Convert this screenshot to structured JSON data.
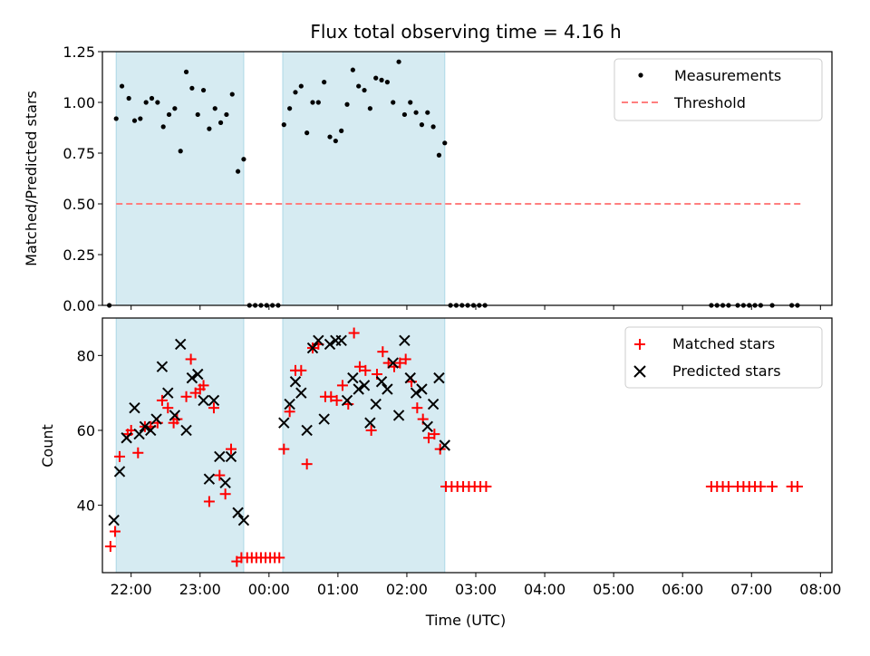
{
  "chart_data": [
    {
      "type": "scatter",
      "title": "Flux total observing time = 4.16 h",
      "xlabel": "",
      "ylabel": "Matched/Predicted stars",
      "xlim": [
        "21:35",
        "08:10"
      ],
      "ylim": [
        0,
        1.25
      ],
      "yticks": [
        0.0,
        0.25,
        0.5,
        0.75,
        1.0,
        1.25
      ],
      "ytick_labels": [
        "0.00",
        "0.25",
        "0.50",
        "0.75",
        "1.00",
        "1.25"
      ],
      "legend_position": "top-right",
      "shaded_intervals": [
        [
          "21:47",
          "23:38"
        ],
        [
          "00:12",
          "02:33"
        ]
      ],
      "shade_color": "#add8e6",
      "series": [
        {
          "name": "Measurements",
          "marker": "dot",
          "color": "#000000",
          "points": [
            [
              "21:41",
              0
            ],
            [
              "21:47",
              0.92
            ],
            [
              "21:52",
              1.08
            ],
            [
              "21:58",
              1.02
            ],
            [
              "22:03",
              0.91
            ],
            [
              "22:08",
              0.92
            ],
            [
              "22:13",
              1.0
            ],
            [
              "22:18",
              1.02
            ],
            [
              "22:23",
              1.0
            ],
            [
              "22:28",
              0.88
            ],
            [
              "22:33",
              0.94
            ],
            [
              "22:38",
              0.97
            ],
            [
              "22:43",
              0.76
            ],
            [
              "22:48",
              1.15
            ],
            [
              "22:53",
              1.07
            ],
            [
              "22:58",
              0.94
            ],
            [
              "23:03",
              1.06
            ],
            [
              "23:08",
              0.87
            ],
            [
              "23:13",
              0.97
            ],
            [
              "23:18",
              0.9
            ],
            [
              "23:23",
              0.94
            ],
            [
              "23:28",
              1.04
            ],
            [
              "23:33",
              0.66
            ],
            [
              "23:38",
              0.72
            ],
            [
              "23:43",
              0
            ],
            [
              "23:48",
              0
            ],
            [
              "23:53",
              0
            ],
            [
              "23:58",
              0
            ],
            [
              "00:03",
              0
            ],
            [
              "00:08",
              0
            ],
            [
              "00:13",
              0.89
            ],
            [
              "00:18",
              0.97
            ],
            [
              "00:23",
              1.05
            ],
            [
              "00:28",
              1.08
            ],
            [
              "00:33",
              0.85
            ],
            [
              "00:38",
              1.0
            ],
            [
              "00:43",
              1.0
            ],
            [
              "00:48",
              1.1
            ],
            [
              "00:53",
              0.83
            ],
            [
              "00:58",
              0.81
            ],
            [
              "01:03",
              0.86
            ],
            [
              "01:08",
              0.99
            ],
            [
              "01:13",
              1.16
            ],
            [
              "01:18",
              1.08
            ],
            [
              "01:23",
              1.06
            ],
            [
              "01:28",
              0.97
            ],
            [
              "01:33",
              1.12
            ],
            [
              "01:38",
              1.11
            ],
            [
              "01:43",
              1.1
            ],
            [
              "01:48",
              1.0
            ],
            [
              "01:53",
              1.2
            ],
            [
              "01:58",
              0.94
            ],
            [
              "02:03",
              1.0
            ],
            [
              "02:08",
              0.95
            ],
            [
              "02:13",
              0.89
            ],
            [
              "02:18",
              0.95
            ],
            [
              "02:23",
              0.88
            ],
            [
              "02:28",
              0.74
            ],
            [
              "02:33",
              0.8
            ],
            [
              "02:38",
              0
            ],
            [
              "02:43",
              0
            ],
            [
              "02:48",
              0
            ],
            [
              "02:53",
              0
            ],
            [
              "02:58",
              0
            ],
            [
              "03:03",
              0
            ],
            [
              "03:08",
              0
            ],
            [
              "06:25",
              0
            ],
            [
              "06:30",
              0
            ],
            [
              "06:35",
              0
            ],
            [
              "06:40",
              0
            ],
            [
              "06:48",
              0
            ],
            [
              "06:53",
              0
            ],
            [
              "06:58",
              0
            ],
            [
              "07:03",
              0
            ],
            [
              "07:08",
              0
            ],
            [
              "07:18",
              0
            ],
            [
              "07:35",
              0
            ],
            [
              "07:40",
              0
            ]
          ]
        },
        {
          "name": "Threshold",
          "type": "line",
          "style": "dashed",
          "color": "#ff7f7f",
          "points": [
            [
              "21:47",
              0.5
            ],
            [
              "07:45",
              0.5
            ]
          ]
        }
      ]
    },
    {
      "type": "scatter",
      "title": "",
      "xlabel": "Time (UTC)",
      "ylabel": "Count",
      "xlim": [
        "21:35",
        "08:10"
      ],
      "ylim": [
        22,
        90
      ],
      "yticks": [
        40,
        60,
        80
      ],
      "ytick_labels": [
        "40",
        "60",
        "80"
      ],
      "xticks": [
        "22:00",
        "23:00",
        "00:00",
        "01:00",
        "02:00",
        "03:00",
        "04:00",
        "05:00",
        "06:00",
        "07:00",
        "08:00"
      ],
      "legend_position": "top-right",
      "shaded_intervals": [
        [
          "21:47",
          "23:38"
        ],
        [
          "00:12",
          "02:33"
        ]
      ],
      "shade_color": "#add8e6",
      "series": [
        {
          "name": "Matched stars",
          "marker": "plus",
          "color": "#ff0000",
          "points": [
            [
              "21:42",
              29
            ],
            [
              "21:46",
              33
            ],
            [
              "21:50",
              53
            ],
            [
              "21:57",
              59
            ],
            [
              "22:00",
              60
            ],
            [
              "22:06",
              54
            ],
            [
              "22:12",
              61
            ],
            [
              "22:17",
              61
            ],
            [
              "22:23",
              62
            ],
            [
              "22:27",
              68
            ],
            [
              "22:32",
              66
            ],
            [
              "22:37",
              62
            ],
            [
              "22:40",
              63
            ],
            [
              "22:48",
              69
            ],
            [
              "22:52",
              79
            ],
            [
              "22:56",
              70
            ],
            [
              "23:00",
              71
            ],
            [
              "23:03",
              72
            ],
            [
              "23:08",
              41
            ],
            [
              "23:12",
              66
            ],
            [
              "23:17",
              48
            ],
            [
              "23:22",
              43
            ],
            [
              "23:27",
              55
            ],
            [
              "23:32",
              25
            ],
            [
              "23:36",
              26
            ],
            [
              "23:41",
              26
            ],
            [
              "23:45",
              26
            ],
            [
              "23:49",
              26
            ],
            [
              "23:53",
              26
            ],
            [
              "23:57",
              26
            ],
            [
              "00:01",
              26
            ],
            [
              "00:05",
              26
            ],
            [
              "00:09",
              26
            ],
            [
              "00:13",
              55
            ],
            [
              "00:18",
              65
            ],
            [
              "00:23",
              76
            ],
            [
              "00:28",
              76
            ],
            [
              "00:33",
              51
            ],
            [
              "00:38",
              82
            ],
            [
              "00:43",
              83
            ],
            [
              "00:49",
              69
            ],
            [
              "00:54",
              69
            ],
            [
              "00:59",
              68
            ],
            [
              "01:04",
              72
            ],
            [
              "01:09",
              67
            ],
            [
              "01:14",
              86
            ],
            [
              "01:19",
              77
            ],
            [
              "01:24",
              76
            ],
            [
              "01:29",
              60
            ],
            [
              "01:34",
              75
            ],
            [
              "01:39",
              81
            ],
            [
              "01:44",
              78
            ],
            [
              "01:49",
              77
            ],
            [
              "01:54",
              78
            ],
            [
              "01:59",
              79
            ],
            [
              "02:04",
              73
            ],
            [
              "02:09",
              66
            ],
            [
              "02:14",
              63
            ],
            [
              "02:19",
              58
            ],
            [
              "02:24",
              59
            ],
            [
              "02:29",
              55
            ],
            [
              "02:34",
              45
            ],
            [
              "02:39",
              45
            ],
            [
              "02:44",
              45
            ],
            [
              "02:49",
              45
            ],
            [
              "02:54",
              45
            ],
            [
              "02:59",
              45
            ],
            [
              "03:04",
              45
            ],
            [
              "03:09",
              45
            ],
            [
              "06:25",
              45
            ],
            [
              "06:30",
              45
            ],
            [
              "06:35",
              45
            ],
            [
              "06:40",
              45
            ],
            [
              "06:48",
              45
            ],
            [
              "06:53",
              45
            ],
            [
              "06:58",
              45
            ],
            [
              "07:03",
              45
            ],
            [
              "07:08",
              45
            ],
            [
              "07:18",
              45
            ],
            [
              "07:35",
              45
            ],
            [
              "07:40",
              45
            ]
          ]
        },
        {
          "name": "Predicted stars",
          "marker": "x",
          "color": "#000000",
          "points": [
            [
              "21:45",
              36
            ],
            [
              "21:50",
              49
            ],
            [
              "21:56",
              58
            ],
            [
              "22:03",
              66
            ],
            [
              "22:07",
              59
            ],
            [
              "22:12",
              61
            ],
            [
              "22:17",
              60
            ],
            [
              "22:22",
              63
            ],
            [
              "22:27",
              77
            ],
            [
              "22:32",
              70
            ],
            [
              "22:38",
              64
            ],
            [
              "22:43",
              83
            ],
            [
              "22:48",
              60
            ],
            [
              "22:53",
              74
            ],
            [
              "22:58",
              75
            ],
            [
              "23:03",
              68
            ],
            [
              "23:08",
              47
            ],
            [
              "23:12",
              68
            ],
            [
              "23:17",
              53
            ],
            [
              "23:22",
              46
            ],
            [
              "23:27",
              53
            ],
            [
              "23:33",
              38
            ],
            [
              "23:38",
              36
            ],
            [
              "00:13",
              62
            ],
            [
              "00:18",
              67
            ],
            [
              "00:23",
              73
            ],
            [
              "00:28",
              70
            ],
            [
              "00:33",
              60
            ],
            [
              "00:38",
              82
            ],
            [
              "00:43",
              84
            ],
            [
              "00:48",
              63
            ],
            [
              "00:53",
              83
            ],
            [
              "00:58",
              84
            ],
            [
              "01:03",
              84
            ],
            [
              "01:08",
              68
            ],
            [
              "01:13",
              74
            ],
            [
              "01:18",
              71
            ],
            [
              "01:23",
              72
            ],
            [
              "01:28",
              62
            ],
            [
              "01:33",
              67
            ],
            [
              "01:38",
              73
            ],
            [
              "01:43",
              71
            ],
            [
              "01:48",
              78
            ],
            [
              "01:53",
              64
            ],
            [
              "01:58",
              84
            ],
            [
              "02:03",
              74
            ],
            [
              "02:08",
              70
            ],
            [
              "02:13",
              71
            ],
            [
              "02:18",
              61
            ],
            [
              "02:23",
              67
            ],
            [
              "02:28",
              74
            ],
            [
              "02:33",
              56
            ]
          ]
        }
      ]
    }
  ]
}
